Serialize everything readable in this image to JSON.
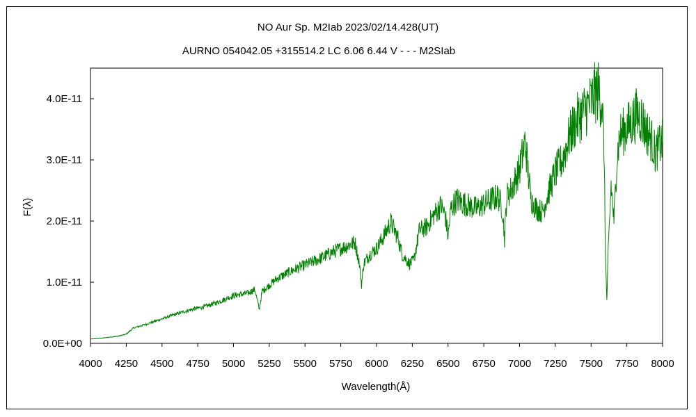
{
  "chart_data": {
    "type": "line",
    "title": "NO Aur    Sp. M2Iab    2023/02/14.428(UT)",
    "subtitle": "AURNO 054042.05 +315514.2 LC 6.06 6.44 V - - - M2SIab",
    "xlabel": "Wavelength(Å)",
    "ylabel": "F(λ)",
    "xlim": [
      4000,
      8000
    ],
    "ylim": [
      0,
      4.5e-11
    ],
    "x_ticks": [
      4000,
      4250,
      4500,
      4750,
      5000,
      5250,
      5500,
      5750,
      6000,
      6250,
      6500,
      6750,
      7000,
      7250,
      7500,
      7750,
      8000
    ],
    "y_ticks": [
      0,
      1e-11,
      2e-11,
      3e-11,
      4e-11
    ],
    "y_tick_labels": [
      "0.0E+00",
      "1.0E-11",
      "2.0E-11",
      "3.0E-11",
      "4.0E-11"
    ],
    "grid": false,
    "legend": "none",
    "series": [
      {
        "color": "#008000",
        "x": [
          4000,
          4100,
          4200,
          4250,
          4300,
          4400,
          4500,
          4600,
          4700,
          4800,
          4900,
          5000,
          5100,
          5150,
          5180,
          5200,
          5300,
          5400,
          5500,
          5600,
          5700,
          5800,
          5850,
          5880,
          5895,
          5910,
          5950,
          6000,
          6050,
          6100,
          6150,
          6180,
          6230,
          6260,
          6300,
          6350,
          6400,
          6450,
          6480,
          6500,
          6520,
          6560,
          6600,
          6650,
          6700,
          6750,
          6800,
          6850,
          6880,
          6895,
          6910,
          6950,
          7000,
          7040,
          7060,
          7080,
          7120,
          7160,
          7200,
          7250,
          7300,
          7350,
          7400,
          7450,
          7500,
          7530,
          7555,
          7575,
          7590,
          7600,
          7610,
          7620,
          7640,
          7660,
          7680,
          7700,
          7740,
          7780,
          7820,
          7850,
          7880,
          7920,
          7950,
          7980,
          8000
        ],
        "y": [
          7e-13,
          9e-13,
          1.2e-12,
          1.5e-12,
          2.5e-12,
          3.2e-12,
          4e-12,
          4.8e-12,
          5.5e-12,
          6e-12,
          6.8e-12,
          7.8e-12,
          8.2e-12,
          8.8e-12,
          5.5e-12,
          8.5e-12,
          1.05e-11,
          1.18e-11,
          1.28e-11,
          1.38e-11,
          1.5e-11,
          1.6e-11,
          1.65e-11,
          1.3e-11,
          9.5e-12,
          1.3e-11,
          1.45e-11,
          1.55e-11,
          1.75e-11,
          1.98e-11,
          1.72e-11,
          1.45e-11,
          1.3e-11,
          1.35e-11,
          1.85e-11,
          1.9e-11,
          2.1e-11,
          2.25e-11,
          2.1e-11,
          1.75e-11,
          2.2e-11,
          2.35e-11,
          2.3e-11,
          2.25e-11,
          2.2e-11,
          2.28e-11,
          2.35e-11,
          2.4e-11,
          2.2e-11,
          1.7e-11,
          2.4e-11,
          2.55e-11,
          2.85e-11,
          3.3e-11,
          2.8e-11,
          2.35e-11,
          2.2e-11,
          2.15e-11,
          2.45e-11,
          2.8e-11,
          3e-11,
          3.4e-11,
          3.65e-11,
          3.8e-11,
          3.95e-11,
          4.1e-11,
          4.12e-11,
          3.95e-11,
          3.3e-11,
          1.5e-11,
          7e-12,
          1.5e-11,
          2.6e-11,
          2e-11,
          3e-11,
          3.4e-11,
          3.5e-11,
          3.6e-11,
          3.75e-11,
          3.7e-11,
          3.5e-11,
          3.35e-11,
          3.1e-11,
          3.25e-11,
          3.3e-11
        ]
      }
    ]
  }
}
